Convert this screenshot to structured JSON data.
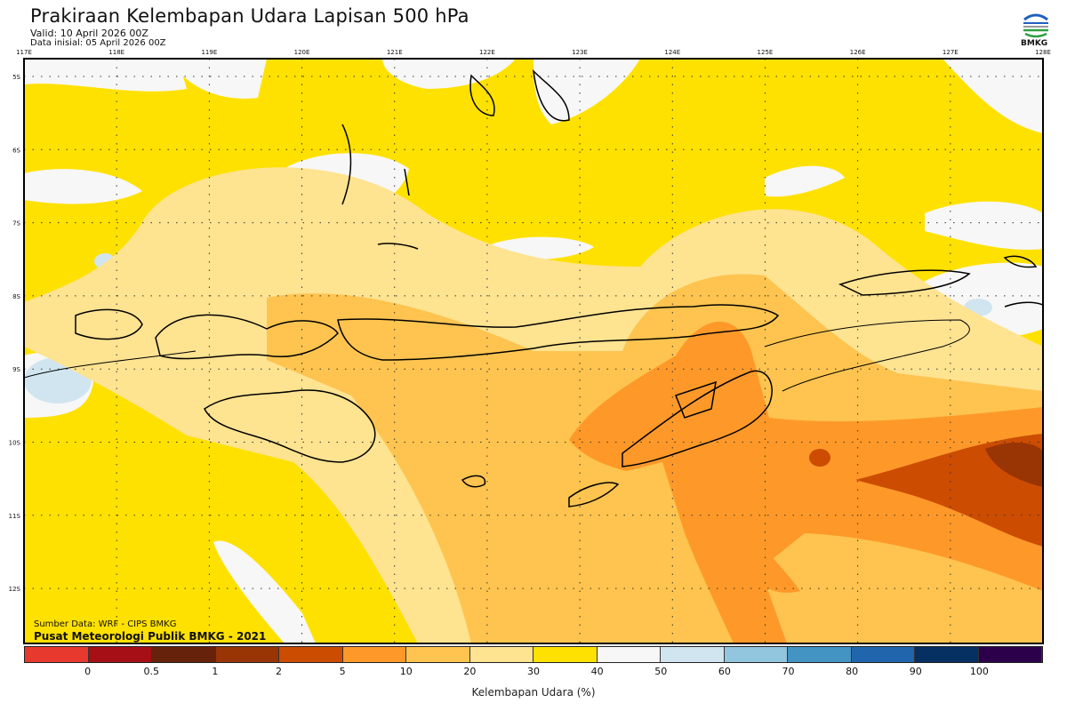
{
  "header": {
    "title": "Prakiraan Kelembapan Udara Lapisan 500 hPa",
    "valid": "Valid: 10 April 2026 00Z",
    "initial": "Data inisial: 05 April 2026 00Z",
    "logo_text": "BMKG"
  },
  "map": {
    "lon_labels": [
      "117E",
      "118E",
      "119E",
      "120E",
      "121E",
      "122E",
      "123E",
      "124E",
      "125E",
      "126E",
      "127E",
      "128E"
    ],
    "lat_labels": [
      "5S",
      "6S",
      "7S",
      "8S",
      "9S",
      "10S",
      "11S",
      "12S"
    ],
    "source": "Sumber Data: WRF - CIPS BMKG",
    "credit": "Pusat Meteorologi Publik BMKG - 2021"
  },
  "colorbar": {
    "title": "Kelembapan Udara (%)",
    "labels": [
      "0",
      "0.5",
      "1",
      "2",
      "5",
      "10",
      "20",
      "30",
      "40",
      "50",
      "60",
      "70",
      "80",
      "90",
      "100"
    ],
    "colors": [
      "#e8392f",
      "#a50f15",
      "#67220b",
      "#993404",
      "#cc4c02",
      "#fe9929",
      "#fec44f",
      "#fee391",
      "#ffe100",
      "#f7f7f7",
      "#d1e5f0",
      "#92c5de",
      "#4393c3",
      "#2166ac",
      "#053061",
      "#2d004b"
    ]
  }
}
